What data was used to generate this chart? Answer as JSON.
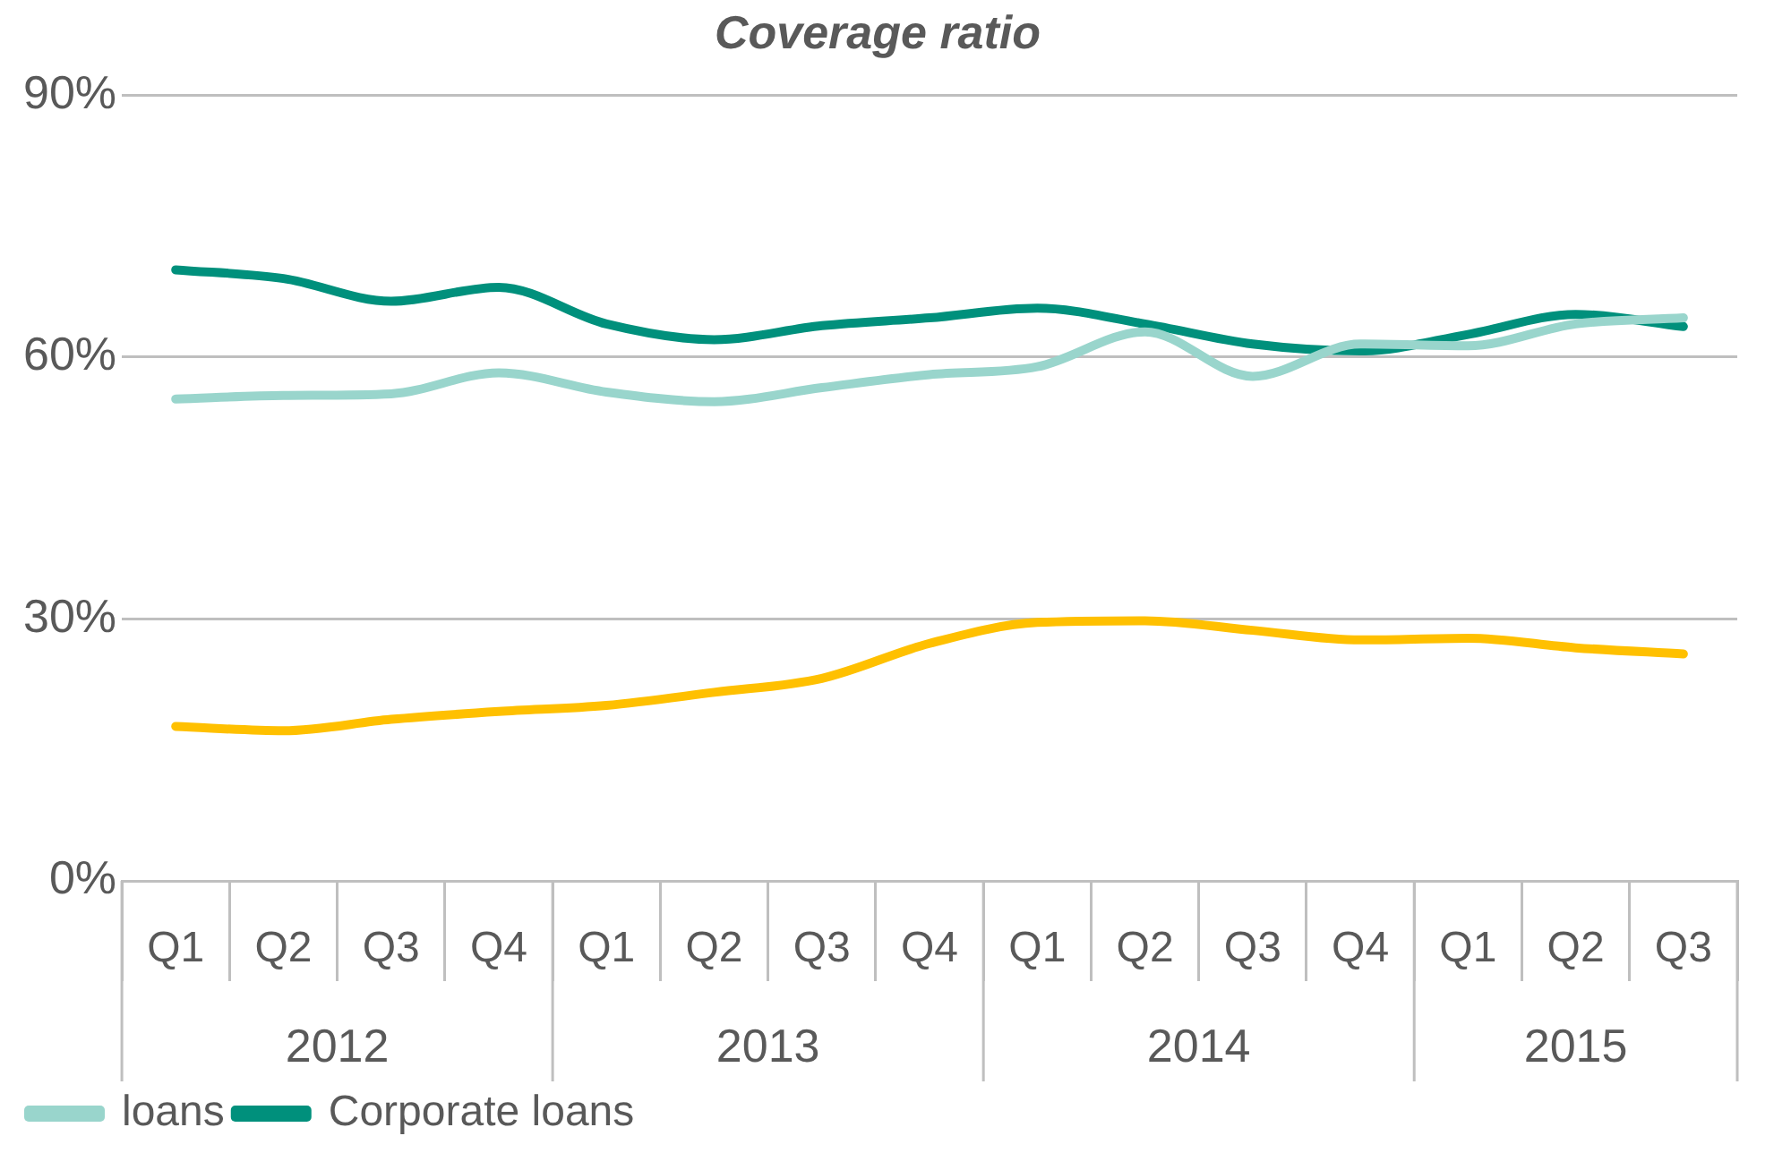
{
  "chart_data": {
    "type": "line",
    "title": "Coverage ratio",
    "categories": [
      "Q1",
      "Q2",
      "Q3",
      "Q4",
      "Q1",
      "Q2",
      "Q3",
      "Q4",
      "Q1",
      "Q2",
      "Q3",
      "Q4",
      "Q1",
      "Q2",
      "Q3"
    ],
    "annotations": [
      "2012",
      "2013",
      "2014",
      "2015"
    ],
    "series": [
      {
        "color": "#ffc000",
        "values": [
          17.7,
          17.2,
          18.5,
          19.4,
          20.1,
          21.6,
          23.2,
          27.2,
          29.6,
          29.8,
          28.7,
          27.6,
          27.8,
          26.7,
          26
        ]
      },
      {
        "name": "loans",
        "color": "#99d5cc",
        "values": [
          55.2,
          55.6,
          55.8,
          58.2,
          56,
          54.9,
          56.5,
          58,
          58.9,
          62.9,
          57.8,
          61.5,
          61.3,
          63.8,
          64.5
        ]
      },
      {
        "name": "Corporate loans",
        "color": "#00907c",
        "values": [
          70,
          69,
          66.4,
          68,
          63.8,
          62,
          63.6,
          64.5,
          65.6,
          63.8,
          61.5,
          60.7,
          62.6,
          64.9,
          63.5
        ]
      }
    ],
    "ylim": [
      0,
      90
    ],
    "yticks": [
      {
        "value": 0,
        "label": "0%"
      },
      {
        "value": 30,
        "label": "30%"
      },
      {
        "value": 60,
        "label": "60%"
      },
      {
        "value": 90,
        "label": "90%"
      }
    ],
    "grid": "y",
    "legend": "bottom left",
    "marker": "none",
    "line_style": "solid"
  }
}
